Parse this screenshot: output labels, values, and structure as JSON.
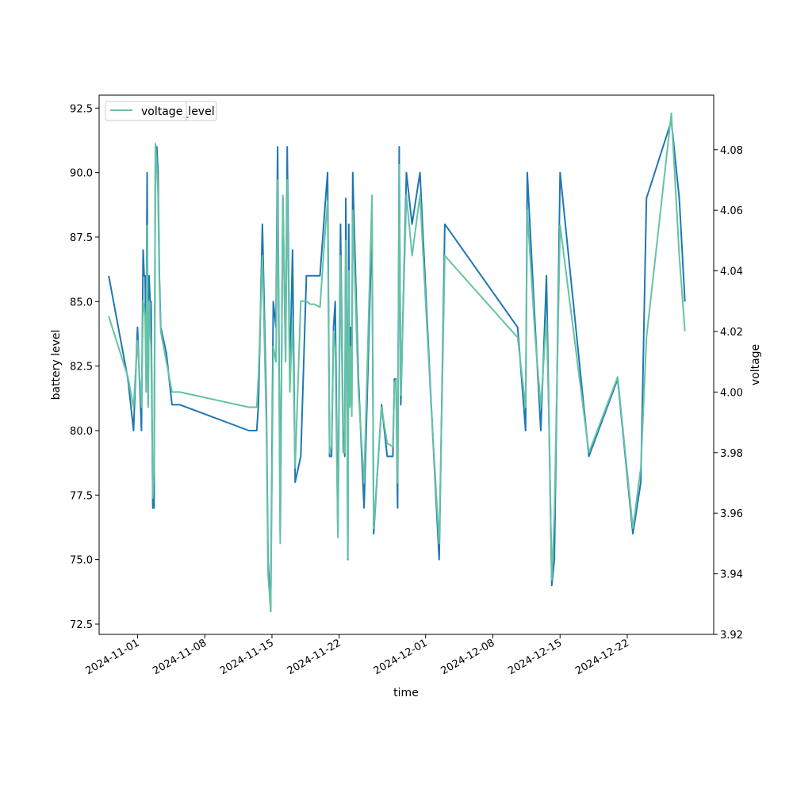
{
  "chart_data": {
    "type": "line",
    "xlabel": "time",
    "ylabel_left": "battery level",
    "ylabel_right": "voltage",
    "x_ticks": [
      "2024-11-01",
      "2024-11-08",
      "2024-11-15",
      "2024-11-22",
      "2024-12-01",
      "2024-12-08",
      "2024-12-15",
      "2024-12-22"
    ],
    "y_left_ticks": [
      "72.5",
      "75.0",
      "77.5",
      "80.0",
      "82.5",
      "85.0",
      "87.5",
      "90.0",
      "92.5"
    ],
    "y_right_ticks": [
      "3.92",
      "3.94",
      "3.96",
      "3.98",
      "4.00",
      "4.02",
      "4.04",
      "4.06",
      "4.08"
    ],
    "ylim_left": [
      72.1,
      93.0
    ],
    "ylim_right": [
      3.92,
      4.098
    ],
    "xlim": [
      "2024-10-28",
      "2024-12-31"
    ],
    "legend": {
      "placement": "top-left",
      "entries": [
        "voltage_level",
        "voltage"
      ],
      "overlap_text": "level"
    },
    "series": [
      {
        "name": "battery_level",
        "color": "#1f77b4",
        "axis": "left",
        "x": [
          "2024-10-29",
          "2024-10-31",
          "2024-11-01",
          "2024-11-01",
          "2024-11-01",
          "2024-11-02",
          "2024-11-02",
          "2024-11-02",
          "2024-11-02",
          "2024-11-02",
          "2024-11-02",
          "2024-11-02",
          "2024-11-02",
          "2024-11-02",
          "2024-11-03",
          "2024-11-03",
          "2024-11-03",
          "2024-11-03",
          "2024-11-03",
          "2024-11-03",
          "2024-11-03",
          "2024-11-04",
          "2024-11-05",
          "2024-11-05",
          "2024-11-13",
          "2024-11-13",
          "2024-11-14",
          "2024-11-14",
          "2024-11-14",
          "2024-11-15",
          "2024-11-15",
          "2024-11-15",
          "2024-11-15",
          "2024-11-16",
          "2024-11-16",
          "2024-11-16",
          "2024-11-16",
          "2024-11-17",
          "2024-11-17",
          "2024-11-17",
          "2024-11-17",
          "2024-11-18",
          "2024-11-19",
          "2024-11-19",
          "2024-11-19",
          "2024-11-20",
          "2024-11-21",
          "2024-11-21",
          "2024-11-21",
          "2024-11-21",
          "2024-11-21",
          "2024-11-22",
          "2024-11-22",
          "2024-11-22",
          "2024-11-22",
          "2024-11-23",
          "2024-11-23",
          "2024-11-23",
          "2024-11-23",
          "2024-11-23",
          "2024-11-23",
          "2024-11-23",
          "2024-11-23",
          "2024-11-23",
          "2024-11-24",
          "2024-11-25",
          "2024-11-25",
          "2024-11-26",
          "2024-11-26",
          "2024-11-27",
          "2024-11-28",
          "2024-11-28",
          "2024-11-28",
          "2024-11-28",
          "2024-11-28",
          "2024-11-28",
          "2024-11-29",
          "2024-11-30",
          "2024-11-30",
          "2024-12-02",
          "2024-12-02",
          "2024-12-03",
          "2024-12-11",
          "2024-12-11",
          "2024-12-12",
          "2024-12-12",
          "2024-12-13",
          "2024-12-14",
          "2024-12-14",
          "2024-12-14",
          "2024-12-14",
          "2024-12-15",
          "2024-12-18",
          "2024-12-21",
          "2024-12-23",
          "2024-12-23",
          "2024-12-24",
          "2024-12-27",
          "2024-12-27",
          "2024-12-28"
        ],
        "y": [
          86.0,
          82.0,
          80.0,
          84.0,
          80.0,
          87.0,
          86.0,
          86.0,
          82.0,
          90.0,
          81.0,
          86.0,
          85.0,
          85.0,
          77.0,
          77.0,
          91.0,
          91.0,
          90.0,
          86.0,
          84.0,
          83.0,
          81.0,
          81.0,
          80.0,
          80.0,
          81.0,
          88.0,
          81.0,
          75.0,
          73.0,
          85.0,
          84.0,
          91.0,
          76.0,
          89.0,
          83.0,
          91.0,
          82.0,
          87.0,
          78.0,
          79.0,
          86.0,
          86.0,
          86.0,
          86.0,
          89.0,
          90.0,
          79.0,
          79.0,
          84.0,
          85.0,
          76.0,
          88.0,
          80.0,
          79.0,
          89.0,
          84.0,
          75.0,
          88.0,
          81.0,
          84.0,
          81.0,
          90.0,
          82.0,
          77.0,
          88.0,
          76.0,
          81.0,
          79.0,
          79.0,
          82.0,
          82.0,
          77.0,
          91.0,
          81.0,
          90.0,
          88.0,
          90.0,
          81.0,
          75.0,
          88.0,
          84.0,
          80.0,
          90.0,
          84.0,
          80.0,
          86.0,
          80.0,
          74.0,
          75.0,
          90.0,
          79.0,
          82.0,
          76.0,
          78.0,
          89.0,
          92.0,
          89.0,
          85.0
        ]
      },
      {
        "name": "voltage",
        "color": "#66c2a5",
        "axis": "right",
        "x": [
          "2024-10-29",
          "2024-10-31",
          "2024-11-01",
          "2024-11-01",
          "2024-11-01",
          "2024-11-02",
          "2024-11-02",
          "2024-11-02",
          "2024-11-02",
          "2024-11-02",
          "2024-11-02",
          "2024-11-02",
          "2024-11-02",
          "2024-11-02",
          "2024-11-03",
          "2024-11-03",
          "2024-11-03",
          "2024-11-03",
          "2024-11-03",
          "2024-11-03",
          "2024-11-03",
          "2024-11-04",
          "2024-11-05",
          "2024-11-05",
          "2024-11-13",
          "2024-11-13",
          "2024-11-14",
          "2024-11-14",
          "2024-11-14",
          "2024-11-15",
          "2024-11-15",
          "2024-11-15",
          "2024-11-15",
          "2024-11-16",
          "2024-11-16",
          "2024-11-16",
          "2024-11-16",
          "2024-11-17",
          "2024-11-17",
          "2024-11-17",
          "2024-11-17",
          "2024-11-18",
          "2024-11-19",
          "2024-11-19",
          "2024-11-19",
          "2024-11-20",
          "2024-11-21",
          "2024-11-21",
          "2024-11-21",
          "2024-11-21",
          "2024-11-21",
          "2024-11-22",
          "2024-11-22",
          "2024-11-22",
          "2024-11-22",
          "2024-11-23",
          "2024-11-23",
          "2024-11-23",
          "2024-11-23",
          "2024-11-23",
          "2024-11-23",
          "2024-11-23",
          "2024-11-23",
          "2024-11-23",
          "2024-11-24",
          "2024-11-25",
          "2024-11-25",
          "2024-11-26",
          "2024-11-26",
          "2024-11-27",
          "2024-11-28",
          "2024-11-28",
          "2024-11-28",
          "2024-11-28",
          "2024-11-28",
          "2024-11-28",
          "2024-11-29",
          "2024-11-30",
          "2024-11-30",
          "2024-12-02",
          "2024-12-02",
          "2024-12-03",
          "2024-12-11",
          "2024-12-11",
          "2024-12-12",
          "2024-12-12",
          "2024-12-13",
          "2024-12-14",
          "2024-12-14",
          "2024-12-14",
          "2024-12-14",
          "2024-12-15",
          "2024-12-18",
          "2024-12-21",
          "2024-12-23",
          "2024-12-23",
          "2024-12-24",
          "2024-12-27",
          "2024-12-27",
          "2024-12-28"
        ],
        "y": [
          4.025,
          4.005,
          3.995,
          4.017,
          3.995,
          4.03,
          4.028,
          4.025,
          4.0,
          4.055,
          3.995,
          4.03,
          4.02,
          4.015,
          3.965,
          3.975,
          4.082,
          4.075,
          4.065,
          4.035,
          4.02,
          4.01,
          4.0,
          4.0,
          3.995,
          3.995,
          4.005,
          4.045,
          3.99,
          3.94,
          3.928,
          4.015,
          4.01,
          4.07,
          3.95,
          4.065,
          4.01,
          4.07,
          4.0,
          4.025,
          3.975,
          4.03,
          4.03,
          4.029,
          4.029,
          4.028,
          4.055,
          4.063,
          3.98,
          3.982,
          4.02,
          4.015,
          3.952,
          4.045,
          3.98,
          3.98,
          4.05,
          4.025,
          3.945,
          4.04,
          3.995,
          4.015,
          3.992,
          4.06,
          4.0,
          3.97,
          4.065,
          3.955,
          3.995,
          3.983,
          3.982,
          4.003,
          4.004,
          3.97,
          4.075,
          3.999,
          4.065,
          4.045,
          4.065,
          3.995,
          3.95,
          4.045,
          4.018,
          3.995,
          4.06,
          4.018,
          3.995,
          4.025,
          3.988,
          3.938,
          3.96,
          4.055,
          3.98,
          4.005,
          3.955,
          3.975,
          4.018,
          4.092,
          4.045,
          4.02
        ]
      }
    ]
  }
}
